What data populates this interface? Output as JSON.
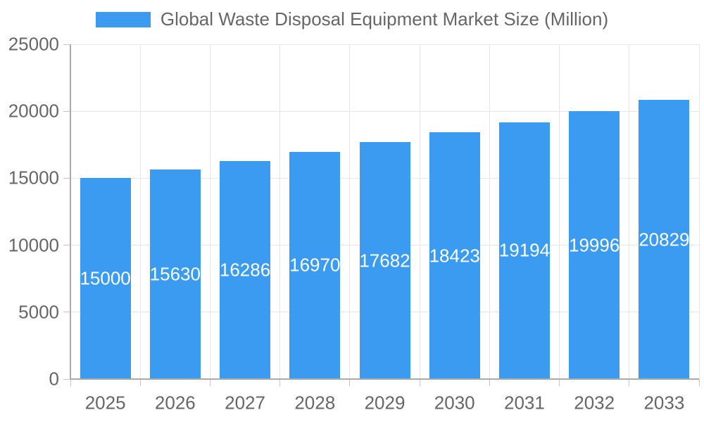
{
  "chart_data": {
    "type": "bar",
    "title": "Global Waste Disposal Equipment Market Size (Million)",
    "legend": {
      "label": "Global Waste Disposal Equipment Market Size (Million)",
      "position": "top"
    },
    "categories": [
      "2025",
      "2026",
      "2027",
      "2028",
      "2029",
      "2030",
      "2031",
      "2032",
      "2033"
    ],
    "values": [
      15000,
      15630,
      16286,
      16970,
      17682,
      18423,
      19194,
      19996,
      20829
    ],
    "bar_labels": [
      "15000",
      "15630",
      "16286",
      "16970",
      "17682",
      "18423",
      "19194",
      "19996",
      "20829"
    ],
    "xlabel": "",
    "ylabel": "",
    "ylim": [
      0,
      25000
    ],
    "ytick_step": 5000,
    "yticks": [
      "0",
      "5000",
      "10000",
      "15000",
      "20000",
      "25000"
    ],
    "grid": true,
    "legend_position": "top",
    "colors": {
      "bar": "#3b9bf0",
      "grid": "#e6e6e6",
      "axis": "#ababab",
      "tick_label": "#666666",
      "bar_label": "#ffffff",
      "background": "#ffffff"
    }
  }
}
